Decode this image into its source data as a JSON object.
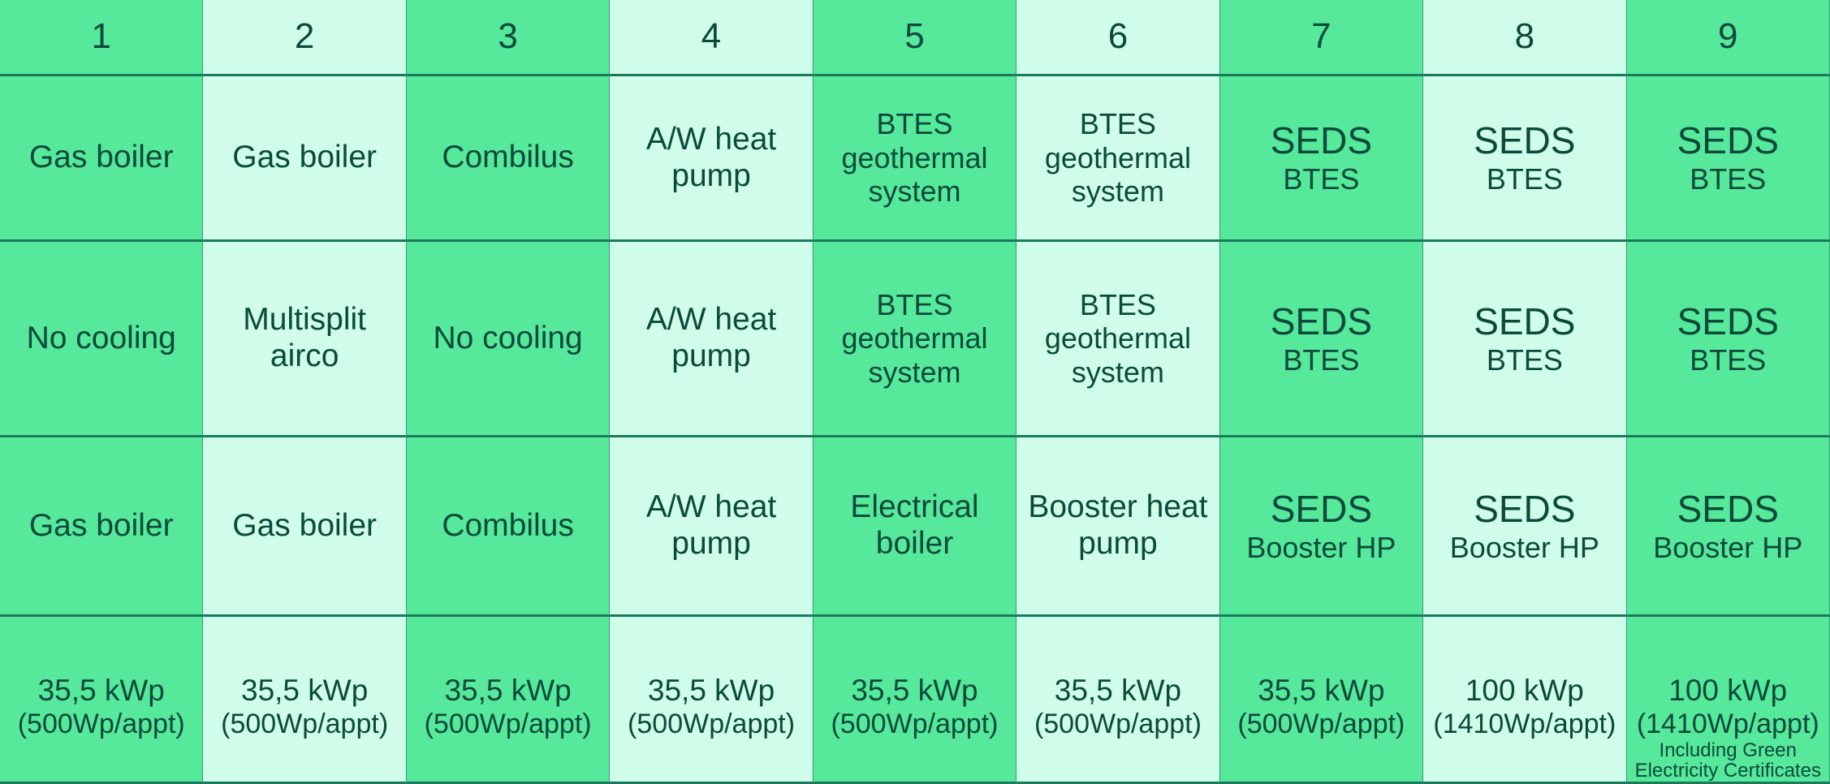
{
  "table": {
    "header": [
      "1",
      "2",
      "3",
      "4",
      "5",
      "6",
      "7",
      "8",
      "9"
    ],
    "rows": [
      [
        "Gas boiler",
        "Gas boiler",
        "Combilus",
        "A/W heat pump",
        "BTES geothermal system",
        "BTES geothermal system",
        {
          "main": "SEDS",
          "sub": "BTES"
        },
        {
          "main": "SEDS",
          "sub": "BTES"
        },
        {
          "main": "SEDS",
          "sub": "BTES"
        }
      ],
      [
        "No cooling",
        "Multisplit airco",
        "No cooling",
        "A/W heat pump",
        "BTES geothermal system",
        "BTES geothermal system",
        {
          "main": "SEDS",
          "sub": "BTES"
        },
        {
          "main": "SEDS",
          "sub": "BTES"
        },
        {
          "main": "SEDS",
          "sub": "BTES"
        }
      ],
      [
        "Gas boiler",
        "Gas boiler",
        "Combilus",
        "A/W heat pump",
        "Electrical boiler",
        "Booster heat pump",
        {
          "main": "SEDS",
          "sub": "Booster HP"
        },
        {
          "main": "SEDS",
          "sub": "Booster HP"
        },
        {
          "main": "SEDS",
          "sub": "Booster HP"
        }
      ],
      [
        {
          "pv": "35,5 kWp",
          "per": "(500Wp/appt)"
        },
        {
          "pv": "35,5 kWp",
          "per": "(500Wp/appt)"
        },
        {
          "pv": "35,5 kWp",
          "per": "(500Wp/appt)"
        },
        {
          "pv": "35,5 kWp",
          "per": "(500Wp/appt)"
        },
        {
          "pv": "35,5 kWp",
          "per": "(500Wp/appt)"
        },
        {
          "pv": "35,5 kWp",
          "per": "(500Wp/appt)"
        },
        {
          "pv": "35,5 kWp",
          "per": "(500Wp/appt)"
        },
        {
          "pv": "100 kWp",
          "per": "(1410Wp/appt)"
        },
        {
          "pv": "100 kWp",
          "per": "(1410Wp/appt)",
          "note": "Including Green Electricity Certificates"
        }
      ]
    ]
  }
}
